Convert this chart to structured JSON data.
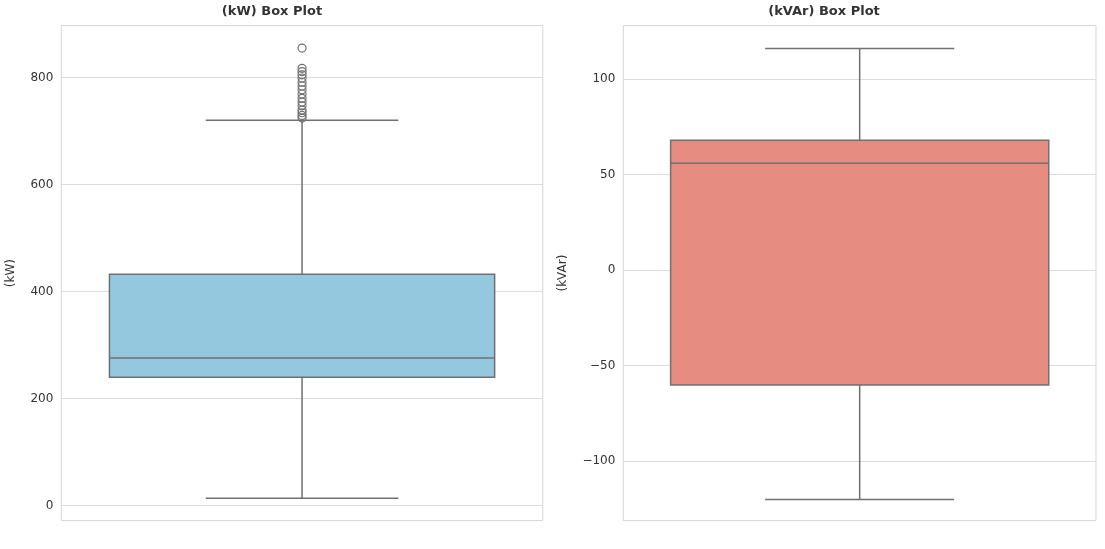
{
  "chart_data": [
    {
      "type": "box",
      "title": "(kW) Box Plot",
      "ylabel": "(kW)",
      "categories": [
        null
      ],
      "ylim": [
        -28,
        898
      ],
      "yticks": [
        0,
        200,
        400,
        600,
        800
      ],
      "grid": "y",
      "marker": "circle",
      "series": [
        {
          "color": "#93c8df",
          "boxes": [
            {
              "low": 14,
              "q1": 240,
              "median": 276,
              "q3": 433,
              "high": 721,
              "outliers": [
                725,
                730,
                735,
                740,
                748,
                755,
                762,
                770,
                778,
                785,
                792,
                800,
                806,
                812,
                818,
                856
              ]
            }
          ]
        }
      ]
    },
    {
      "type": "box",
      "title": "(kVAr) Box Plot",
      "ylabel": "(kVAr)",
      "categories": [
        null
      ],
      "ylim": [
        -131,
        128
      ],
      "yticks": [
        -100,
        -50,
        0,
        50,
        100
      ],
      "grid": "y",
      "series": [
        {
          "color": "#e78c80",
          "boxes": [
            {
              "low": -120,
              "q1": -60,
              "median": 56,
              "q3": 68,
              "high": 116
            }
          ]
        }
      ]
    }
  ]
}
